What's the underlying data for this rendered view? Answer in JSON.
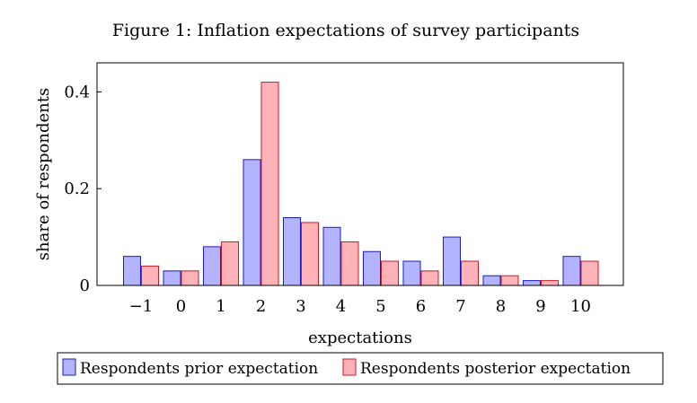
{
  "chart_data": {
    "type": "bar",
    "title": "Figure 1: Inflation expectations of survey participants",
    "xlabel": "expectations",
    "ylabel": "share of respondents",
    "categories": [
      "−1",
      "0",
      "1",
      "2",
      "3",
      "4",
      "5",
      "6",
      "7",
      "8",
      "9",
      "10"
    ],
    "ylim": [
      0,
      0.46
    ],
    "yticks": [
      {
        "value": 0,
        "label": "0"
      },
      {
        "value": 0.2,
        "label": "0.2"
      },
      {
        "value": 0.4,
        "label": "0.4"
      }
    ],
    "grid": false,
    "legend_position": "bottom",
    "series": [
      {
        "name": "Respondents prior expectation",
        "fill": "#b3b3ff",
        "stroke": "#1a1acc",
        "values": [
          0.06,
          0.03,
          0.08,
          0.26,
          0.14,
          0.12,
          0.07,
          0.05,
          0.1,
          0.02,
          0.01,
          0.06
        ]
      },
      {
        "name": "Respondents posterior expectation",
        "fill": "#ffb3b8",
        "stroke": "#cc1a24",
        "values": [
          0.04,
          0.03,
          0.09,
          0.42,
          0.13,
          0.09,
          0.05,
          0.03,
          0.05,
          0.02,
          0.01,
          0.05
        ]
      }
    ]
  }
}
